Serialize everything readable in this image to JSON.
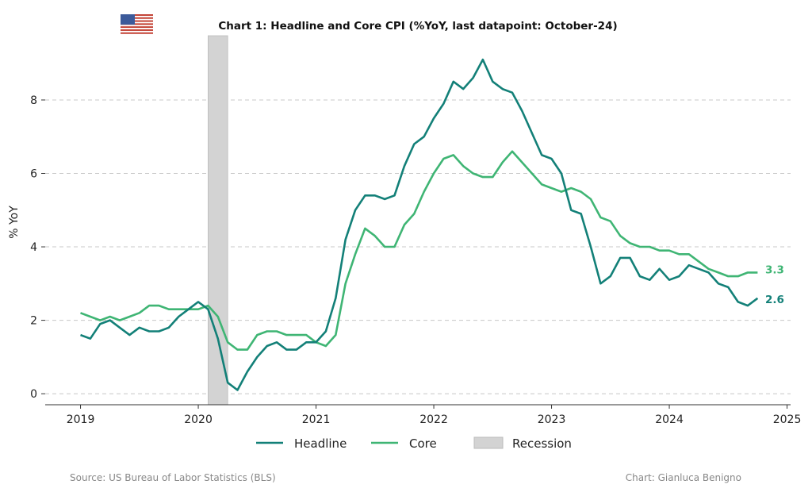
{
  "chart_data": {
    "type": "line",
    "title": "Chart 1: Headline and Core CPI (%YoY, last datapoint: October-24)",
    "xlabel": "",
    "ylabel": "% YoY",
    "x_start": "2019-01",
    "x_end": "2024-10",
    "frequency": "monthly",
    "xlim": [
      2018.7,
      2025.03
    ],
    "ylim": [
      -0.3,
      9.75
    ],
    "x_ticks": [
      2019,
      2020,
      2021,
      2022,
      2023,
      2024,
      2025
    ],
    "y_ticks": [
      0,
      2,
      4,
      6,
      8
    ],
    "grid": "horizontal dashed",
    "legend_position": "bottom",
    "series": [
      {
        "name": "Headline",
        "color": "#138078",
        "end_label": "2.6",
        "values": [
          1.6,
          1.5,
          1.9,
          2.0,
          1.8,
          1.6,
          1.8,
          1.7,
          1.7,
          1.8,
          2.1,
          2.3,
          2.5,
          2.3,
          1.5,
          0.3,
          0.1,
          0.6,
          1.0,
          1.3,
          1.4,
          1.2,
          1.2,
          1.4,
          1.4,
          1.7,
          2.6,
          4.2,
          5.0,
          5.4,
          5.4,
          5.3,
          5.4,
          6.2,
          6.8,
          7.0,
          7.5,
          7.9,
          8.5,
          8.3,
          8.6,
          9.1,
          8.5,
          8.3,
          8.2,
          7.7,
          7.1,
          6.5,
          6.4,
          6.0,
          5.0,
          4.9,
          4.0,
          3.0,
          3.2,
          3.7,
          3.7,
          3.2,
          3.1,
          3.4,
          3.1,
          3.2,
          3.5,
          3.4,
          3.3,
          3.0,
          2.9,
          2.5,
          2.4,
          2.6
        ]
      },
      {
        "name": "Core",
        "color": "#3fb574",
        "end_label": "3.3",
        "values": [
          2.2,
          2.1,
          2.0,
          2.1,
          2.0,
          2.1,
          2.2,
          2.4,
          2.4,
          2.3,
          2.3,
          2.3,
          2.3,
          2.4,
          2.1,
          1.4,
          1.2,
          1.2,
          1.6,
          1.7,
          1.7,
          1.6,
          1.6,
          1.6,
          1.4,
          1.3,
          1.6,
          3.0,
          3.8,
          4.5,
          4.3,
          4.0,
          4.0,
          4.6,
          4.9,
          5.5,
          6.0,
          6.4,
          6.5,
          6.2,
          6.0,
          5.9,
          5.9,
          6.3,
          6.6,
          6.3,
          6.0,
          5.7,
          5.6,
          5.5,
          5.6,
          5.5,
          5.3,
          4.8,
          4.7,
          4.3,
          4.1,
          4.0,
          4.0,
          3.9,
          3.9,
          3.8,
          3.8,
          3.6,
          3.4,
          3.3,
          3.2,
          3.2,
          3.3,
          3.3
        ]
      }
    ],
    "shaded_regions": [
      {
        "name": "Recession",
        "start": "2020-02",
        "end": "2020-04",
        "color": "#d3d3d3"
      }
    ]
  },
  "flag_icon": "us-flag",
  "footer": {
    "source": "Source: US Bureau of Labor Statistics (BLS)",
    "credit": "Chart: Gianluca Benigno"
  }
}
